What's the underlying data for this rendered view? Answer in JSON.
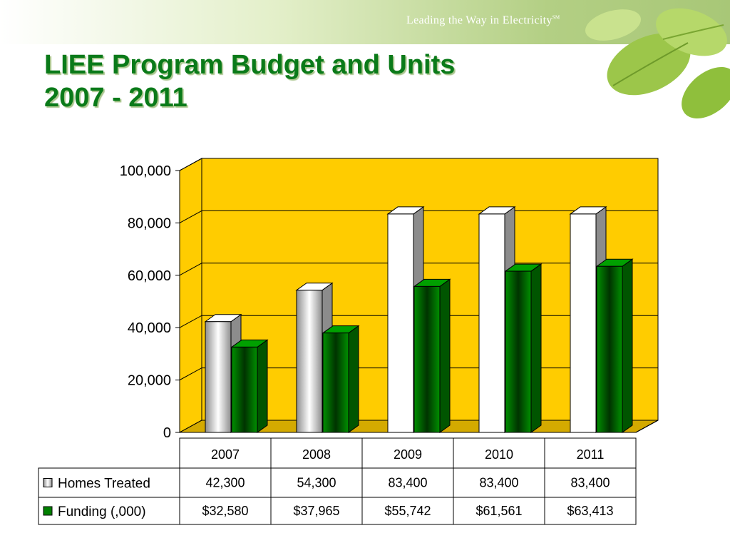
{
  "slide": {
    "tagline": "Leading the Way in Electricity",
    "tagline_mark": "SM",
    "title_line1": "LIEE Program Budget and Units",
    "title_line2": "2007 - 2011"
  },
  "chart_data": {
    "type": "bar",
    "categories": [
      "2007",
      "2008",
      "2009",
      "2010",
      "2011"
    ],
    "series": [
      {
        "name": "Homes Treated",
        "values": [
          42300,
          54300,
          83400,
          83400,
          83400
        ],
        "labels": [
          "42,300",
          "54,300",
          "83,400",
          "83,400",
          "83,400"
        ]
      },
      {
        "name": "Funding (,000)",
        "values": [
          32580,
          37965,
          55742,
          61561,
          63413
        ],
        "labels": [
          "$32,580",
          "$37,965",
          "$55,742",
          "$61,561",
          "$63,413"
        ]
      }
    ],
    "ylim": [
      0,
      100000
    ],
    "yticks": [
      0,
      20000,
      40000,
      60000,
      80000,
      100000
    ],
    "ytick_labels": [
      "0",
      "20,000",
      "40,000",
      "60,000",
      "80,000",
      "100,000"
    ],
    "grid": true,
    "legend": "data-table",
    "colors": {
      "wall": "#ffcc00",
      "floor": "#d4aa00",
      "homes": "#ffffff",
      "homes_side": "#8c8c8c",
      "funding": "#008000",
      "funding_side": "#005500",
      "title": "#0a7a19"
    }
  }
}
